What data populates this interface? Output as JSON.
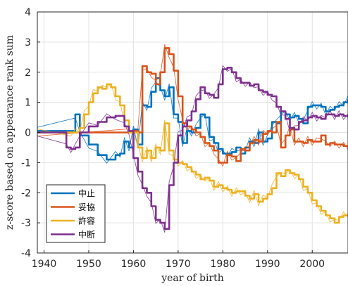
{
  "chart_data": {
    "type": "line",
    "title": "",
    "xlabel": "year of birth",
    "ylabel": "z-score based on appearance rank sum",
    "xlim": [
      1938.5,
      2008
    ],
    "ylim": [
      -4,
      4
    ],
    "xticks": [
      1940,
      1950,
      1960,
      1970,
      1980,
      1990,
      2000
    ],
    "yticks": [
      -4,
      -3,
      -2,
      -1,
      0,
      1,
      2,
      3,
      4
    ],
    "grid": true,
    "legend": "bottom-left",
    "series": [
      {
        "name": "中止",
        "color": "#0072BD",
        "x": [
          1938.5,
          1947,
          1948,
          1950,
          1952,
          1954,
          1956,
          1957,
          1958,
          1959,
          1960,
          1961,
          1962,
          1963,
          1964,
          1965,
          1966,
          1967,
          1968,
          1969,
          1970,
          1971,
          1972,
          1973,
          1974,
          1975,
          1976,
          1977,
          1978,
          1979,
          1980,
          1981,
          1982,
          1983,
          1984,
          1985,
          1986,
          1987,
          1988,
          1989,
          1990,
          1991,
          1992,
          1993,
          1994,
          1995,
          1996,
          1997,
          1998,
          1999,
          2000,
          2001,
          2002,
          2003,
          2004,
          2005,
          2006,
          2007,
          2008
        ],
        "y": [
          0.05,
          0.6,
          -0.1,
          -0.4,
          -0.75,
          -0.9,
          -0.75,
          -0.7,
          -0.3,
          -0.5,
          0.1,
          -0.4,
          0.9,
          0.85,
          1.35,
          1.8,
          1.4,
          1.2,
          1.5,
          0.6,
          0.35,
          -0.35,
          0.05,
          0.0,
          0.15,
          0.6,
          0.5,
          -0.15,
          -0.35,
          -0.55,
          -0.7,
          -0.7,
          -0.65,
          -0.5,
          -0.7,
          -0.5,
          -0.3,
          -0.35,
          0.0,
          -0.3,
          -0.2,
          0.35,
          0.3,
          0.7,
          0.6,
          0.5,
          0.55,
          0.45,
          0.3,
          0.85,
          0.9,
          0.9,
          0.85,
          0.7,
          0.75,
          0.85,
          0.9,
          1.0,
          1.1
        ]
      },
      {
        "name": "妥協",
        "color": "#D95319",
        "x": [
          1938.5,
          1959,
          1960,
          1961,
          1962,
          1963,
          1964,
          1965,
          1966,
          1967,
          1968,
          1969,
          1970,
          1971,
          1972,
          1973,
          1974,
          1975,
          1976,
          1977,
          1978,
          1979,
          1980,
          1981,
          1982,
          1983,
          1984,
          1985,
          1986,
          1987,
          1988,
          1989,
          1990,
          1991,
          1992,
          1993,
          1994,
          1995,
          1996,
          1997,
          1998,
          1999,
          2000,
          2001,
          2002,
          2003,
          2004,
          2005,
          2006,
          2007,
          2008
        ],
        "y": [
          0.0,
          0.0,
          0.05,
          0.0,
          2.2,
          2.0,
          1.95,
          1.6,
          2.0,
          2.8,
          2.6,
          2.05,
          1.2,
          0.3,
          0.2,
          0.1,
          0.0,
          -0.15,
          -0.35,
          -0.45,
          -0.6,
          -1.0,
          -1.0,
          -0.75,
          -0.8,
          -0.95,
          -0.55,
          -0.6,
          -0.35,
          -0.25,
          -0.3,
          -0.05,
          0.05,
          0.0,
          0.35,
          -0.5,
          -0.1,
          0.1,
          -0.3,
          -0.3,
          -0.35,
          -0.25,
          -0.3,
          -0.3,
          -0.1,
          -0.4,
          -0.35,
          -0.4,
          -0.4,
          -0.45,
          -0.45
        ]
      },
      {
        "name": "許容",
        "color": "#EDB120",
        "x": [
          1938.5,
          1946,
          1947,
          1948,
          1949,
          1950,
          1951,
          1952,
          1953,
          1954,
          1955,
          1956,
          1957,
          1958,
          1959,
          1960,
          1961,
          1962,
          1963,
          1964,
          1965,
          1966,
          1967,
          1968,
          1969,
          1970,
          1971,
          1972,
          1973,
          1974,
          1975,
          1976,
          1977,
          1978,
          1979,
          1980,
          1981,
          1982,
          1983,
          1984,
          1985,
          1986,
          1987,
          1988,
          1989,
          1990,
          1991,
          1992,
          1993,
          1994,
          1995,
          1996,
          1997,
          1998,
          1999,
          2000,
          2001,
          2002,
          2003,
          2004,
          2005,
          2006,
          2007,
          2008
        ],
        "y": [
          0.0,
          0.0,
          0.0,
          0.15,
          0.6,
          1.0,
          1.3,
          1.5,
          1.45,
          1.6,
          1.5,
          1.2,
          0.9,
          0.4,
          0.0,
          0.0,
          -0.5,
          -0.85,
          -0.6,
          -0.85,
          -0.5,
          -0.6,
          0.3,
          -0.6,
          -0.9,
          -1.0,
          -1.05,
          -1.15,
          -1.3,
          -1.4,
          -1.55,
          -1.5,
          -1.6,
          -1.8,
          -1.75,
          -1.85,
          -1.9,
          -2.0,
          -1.95,
          -1.95,
          -2.1,
          -2.2,
          -2.05,
          -2.3,
          -2.2,
          -2.05,
          -1.85,
          -1.35,
          -1.45,
          -1.25,
          -1.35,
          -1.4,
          -1.55,
          -1.8,
          -2.0,
          -2.25,
          -2.45,
          -2.6,
          -2.75,
          -2.85,
          -3.0,
          -2.8,
          -2.75,
          -2.7
        ]
      },
      {
        "name": "中断",
        "color": "#7E2F8E",
        "x": [
          1938.5,
          1945,
          1946,
          1947,
          1948,
          1950,
          1952,
          1954,
          1956,
          1958,
          1959,
          1960,
          1961,
          1962,
          1963,
          1964,
          1965,
          1966,
          1967,
          1968,
          1969,
          1970,
          1971,
          1972,
          1973,
          1974,
          1975,
          1976,
          1977,
          1978,
          1979,
          1980,
          1981,
          1982,
          1983,
          1984,
          1985,
          1986,
          1987,
          1988,
          1989,
          1990,
          1991,
          1992,
          1993,
          1994,
          1995,
          1996,
          1997,
          1998,
          1999,
          2000,
          2001,
          2002,
          2003,
          2004,
          2005,
          2006,
          2007,
          2008
        ],
        "y": [
          0.0,
          -0.5,
          -0.55,
          -0.5,
          0.0,
          0.2,
          0.35,
          0.5,
          0.55,
          0.2,
          0.05,
          -0.85,
          -1.3,
          -1.85,
          -2.0,
          -2.45,
          -2.9,
          -3.0,
          -3.2,
          -1.75,
          -1.0,
          -0.1,
          0.2,
          0.4,
          0.7,
          1.1,
          1.5,
          1.3,
          1.25,
          1.15,
          1.6,
          2.1,
          2.15,
          2.0,
          1.8,
          1.65,
          1.65,
          1.55,
          1.6,
          1.4,
          1.35,
          1.25,
          1.2,
          0.85,
          0.7,
          0.45,
          0.15,
          0.1,
          0.35,
          0.4,
          0.5,
          0.55,
          0.5,
          0.45,
          0.6,
          0.6,
          0.55,
          0.6,
          0.55,
          0.5
        ]
      }
    ]
  }
}
